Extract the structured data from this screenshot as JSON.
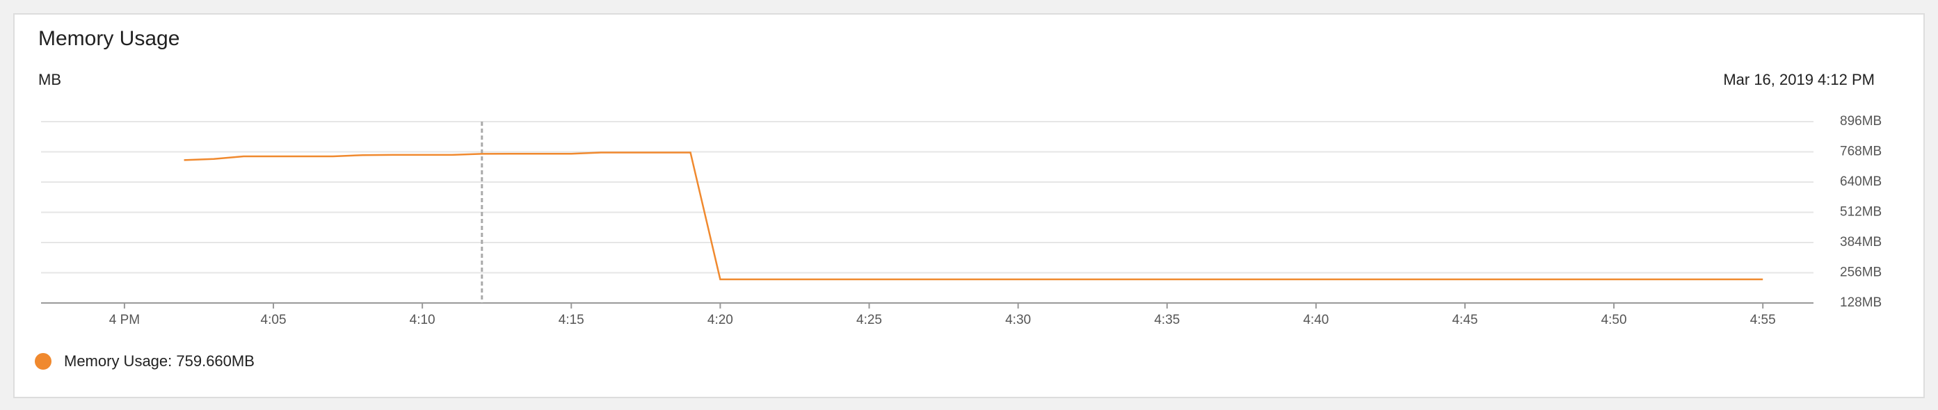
{
  "chart_data": {
    "type": "line",
    "title": "Memory Usage",
    "y_label": "MB",
    "hover": {
      "x": 12,
      "label": "Mar 16, 2019 4:12 PM"
    },
    "x": [
      2,
      3,
      4,
      5,
      6,
      7,
      8,
      9,
      10,
      11,
      12,
      13,
      14,
      15,
      16,
      17,
      18,
      19,
      20,
      21,
      22,
      23,
      24,
      25,
      26,
      27,
      28,
      29,
      30,
      31,
      32,
      33,
      34,
      35,
      36,
      37,
      38,
      39,
      40,
      41,
      42,
      43,
      44,
      45,
      46,
      47,
      48,
      49,
      50,
      51,
      52,
      53,
      54,
      55
    ],
    "series": [
      {
        "name": "Memory Usage: 759.660MB",
        "color": "#f0892e",
        "values": [
          733,
          738,
          749,
          749,
          749,
          749,
          754,
          755,
          755,
          755,
          759.66,
          760,
          760,
          760,
          765,
          765,
          765,
          765,
          228,
          228,
          228,
          228,
          228,
          228,
          228,
          228,
          228,
          228,
          228,
          228,
          228,
          228,
          228,
          228,
          228,
          228,
          228,
          228,
          228,
          228,
          228,
          228,
          228,
          228,
          228,
          228,
          228,
          228,
          228,
          228,
          228,
          228,
          228,
          228
        ]
      }
    ],
    "xlim": [
      -2.8,
      56.7
    ],
    "xticks": [
      {
        "value": 0,
        "label": "4 PM"
      },
      {
        "value": 5,
        "label": "4:05"
      },
      {
        "value": 10,
        "label": "4:10"
      },
      {
        "value": 15,
        "label": "4:15"
      },
      {
        "value": 20,
        "label": "4:20"
      },
      {
        "value": 25,
        "label": "4:25"
      },
      {
        "value": 30,
        "label": "4:30"
      },
      {
        "value": 35,
        "label": "4:35"
      },
      {
        "value": 40,
        "label": "4:40"
      },
      {
        "value": 45,
        "label": "4:45"
      },
      {
        "value": 50,
        "label": "4:50"
      },
      {
        "value": 55,
        "label": "4:55"
      }
    ],
    "ylim": [
      128,
      896
    ],
    "yticks": [
      {
        "value": 128,
        "label": "128MB"
      },
      {
        "value": 256,
        "label": "256MB"
      },
      {
        "value": 384,
        "label": "384MB"
      },
      {
        "value": 512,
        "label": "512MB"
      },
      {
        "value": 640,
        "label": "640MB"
      },
      {
        "value": 768,
        "label": "768MB"
      },
      {
        "value": 896,
        "label": "896MB"
      }
    ],
    "grid": true
  }
}
